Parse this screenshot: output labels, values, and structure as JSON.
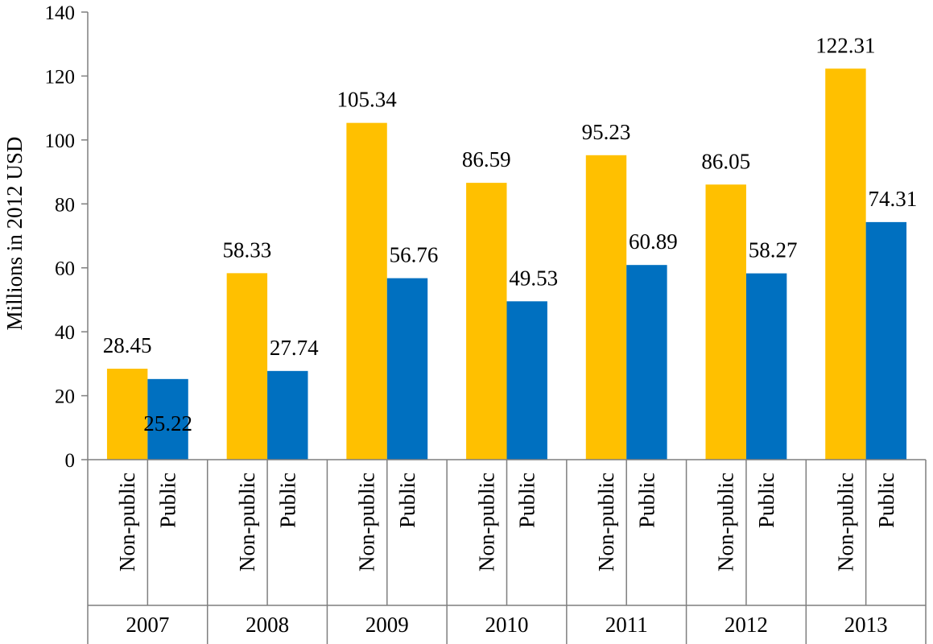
{
  "chart_data": {
    "type": "bar",
    "title": "",
    "xlabel": "",
    "ylabel": "Millions in 2012 USD",
    "ylim": [
      0,
      140
    ],
    "yticks": [
      0,
      20,
      40,
      60,
      80,
      100,
      120,
      140
    ],
    "grid": false,
    "legend": "none",
    "groups": [
      {
        "year": "2007",
        "bars": [
          {
            "name": "Non-public",
            "value": 28.45,
            "label": "28.45"
          },
          {
            "name": "Public",
            "value": 25.22,
            "label": "25.22"
          }
        ]
      },
      {
        "year": "2008",
        "bars": [
          {
            "name": "Non-public",
            "value": 58.33,
            "label": "58.33"
          },
          {
            "name": "Public",
            "value": 27.74,
            "label": "27.74"
          }
        ]
      },
      {
        "year": "2009",
        "bars": [
          {
            "name": "Non-public",
            "value": 105.34,
            "label": "105.34"
          },
          {
            "name": "Public",
            "value": 56.76,
            "label": "56.76"
          }
        ]
      },
      {
        "year": "2010",
        "bars": [
          {
            "name": "Non-public",
            "value": 86.59,
            "label": "86.59"
          },
          {
            "name": "Public",
            "value": 49.53,
            "label": "49.53"
          }
        ]
      },
      {
        "year": "2011",
        "bars": [
          {
            "name": "Non-public",
            "value": 95.23,
            "label": "95.23"
          },
          {
            "name": "Public",
            "value": 60.89,
            "label": "60.89"
          }
        ]
      },
      {
        "year": "2012",
        "bars": [
          {
            "name": "Non-public",
            "value": 86.05,
            "label": "86.05"
          },
          {
            "name": "Public",
            "value": 58.27,
            "label": "58.27"
          }
        ]
      },
      {
        "year": "2013",
        "bars": [
          {
            "name": "Non-public",
            "value": 122.31,
            "label": "122.31"
          },
          {
            "name": "Public",
            "value": 74.31,
            "label": "74.31"
          }
        ]
      }
    ],
    "colors": {
      "Non-public": "#FFC000",
      "Public": "#0070C0"
    }
  }
}
